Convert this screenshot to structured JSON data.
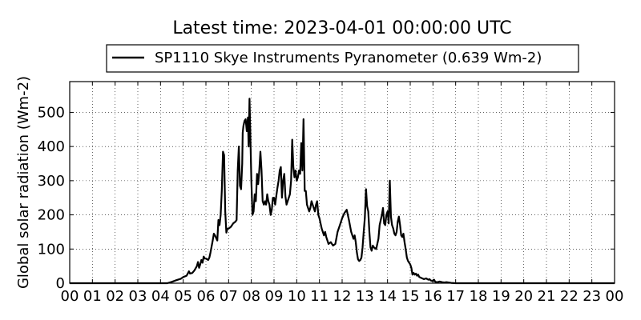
{
  "chart_data": {
    "type": "line",
    "title": "Latest time: 2023-04-01 00:00:00 UTC",
    "ylabel": "Global solar radiation (Wm-2)",
    "xlabel": "",
    "xlim": [
      0,
      24
    ],
    "ylim": [
      0,
      590
    ],
    "x_ticks": [
      "00",
      "01",
      "02",
      "03",
      "04",
      "05",
      "06",
      "07",
      "08",
      "09",
      "10",
      "11",
      "12",
      "13",
      "14",
      "15",
      "16",
      "17",
      "18",
      "19",
      "20",
      "21",
      "22",
      "23",
      "00"
    ],
    "y_ticks": [
      0,
      100,
      200,
      300,
      400,
      500
    ],
    "grid": true,
    "legend": {
      "placement": "top-center"
    },
    "series": [
      {
        "name": "SP1110 Skye Instruments Pyranometer (0.639 Wm-2)",
        "color": "#000000",
        "points": [
          [
            0,
            0
          ],
          [
            4.3,
            0
          ],
          [
            4.5,
            4
          ],
          [
            4.7,
            9
          ],
          [
            4.9,
            13
          ],
          [
            5.0,
            18
          ],
          [
            5.15,
            22
          ],
          [
            5.25,
            35
          ],
          [
            5.3,
            28
          ],
          [
            5.4,
            30
          ],
          [
            5.5,
            38
          ],
          [
            5.6,
            50
          ],
          [
            5.65,
            62
          ],
          [
            5.7,
            45
          ],
          [
            5.75,
            55
          ],
          [
            5.8,
            68
          ],
          [
            5.85,
            60
          ],
          [
            5.9,
            78
          ],
          [
            5.95,
            72
          ],
          [
            6.0,
            72
          ],
          [
            6.1,
            68
          ],
          [
            6.15,
            75
          ],
          [
            6.2,
            90
          ],
          [
            6.3,
            125
          ],
          [
            6.35,
            145
          ],
          [
            6.4,
            140
          ],
          [
            6.45,
            132
          ],
          [
            6.5,
            125
          ],
          [
            6.55,
            185
          ],
          [
            6.6,
            170
          ],
          [
            6.65,
            200
          ],
          [
            6.7,
            270
          ],
          [
            6.75,
            385
          ],
          [
            6.8,
            375
          ],
          [
            6.85,
            210
          ],
          [
            6.9,
            148
          ],
          [
            6.95,
            160
          ],
          [
            7.0,
            160
          ],
          [
            7.1,
            165
          ],
          [
            7.2,
            175
          ],
          [
            7.3,
            180
          ],
          [
            7.35,
            185
          ],
          [
            7.4,
            330
          ],
          [
            7.45,
            400
          ],
          [
            7.5,
            285
          ],
          [
            7.55,
            275
          ],
          [
            7.6,
            350
          ],
          [
            7.62,
            440
          ],
          [
            7.65,
            460
          ],
          [
            7.7,
            475
          ],
          [
            7.75,
            480
          ],
          [
            7.8,
            445
          ],
          [
            7.85,
            485
          ],
          [
            7.88,
            400
          ],
          [
            7.92,
            540
          ],
          [
            7.95,
            450
          ],
          [
            8.0,
            300
          ],
          [
            8.05,
            200
          ],
          [
            8.1,
            210
          ],
          [
            8.15,
            260
          ],
          [
            8.2,
            240
          ],
          [
            8.25,
            320
          ],
          [
            8.3,
            290
          ],
          [
            8.35,
            330
          ],
          [
            8.4,
            385
          ],
          [
            8.45,
            330
          ],
          [
            8.5,
            240
          ],
          [
            8.55,
            230
          ],
          [
            8.6,
            240
          ],
          [
            8.65,
            230
          ],
          [
            8.7,
            260
          ],
          [
            8.75,
            240
          ],
          [
            8.8,
            230
          ],
          [
            8.85,
            200
          ],
          [
            8.9,
            215
          ],
          [
            8.95,
            250
          ],
          [
            9.0,
            250
          ],
          [
            9.05,
            230
          ],
          [
            9.1,
            255
          ],
          [
            9.15,
            280
          ],
          [
            9.2,
            300
          ],
          [
            9.25,
            330
          ],
          [
            9.3,
            340
          ],
          [
            9.35,
            250
          ],
          [
            9.4,
            300
          ],
          [
            9.45,
            320
          ],
          [
            9.5,
            255
          ],
          [
            9.55,
            230
          ],
          [
            9.6,
            240
          ],
          [
            9.7,
            260
          ],
          [
            9.75,
            300
          ],
          [
            9.8,
            420
          ],
          [
            9.85,
            340
          ],
          [
            9.9,
            310
          ],
          [
            9.95,
            330
          ],
          [
            10.0,
            300
          ],
          [
            10.05,
            310
          ],
          [
            10.1,
            330
          ],
          [
            10.15,
            320
          ],
          [
            10.2,
            410
          ],
          [
            10.25,
            330
          ],
          [
            10.3,
            480
          ],
          [
            10.35,
            270
          ],
          [
            10.4,
            270
          ],
          [
            10.45,
            230
          ],
          [
            10.5,
            220
          ],
          [
            10.55,
            210
          ],
          [
            10.6,
            220
          ],
          [
            10.65,
            240
          ],
          [
            10.7,
            230
          ],
          [
            10.75,
            220
          ],
          [
            10.8,
            210
          ],
          [
            10.85,
            230
          ],
          [
            10.9,
            240
          ],
          [
            10.95,
            200
          ],
          [
            11.0,
            190
          ],
          [
            11.05,
            175
          ],
          [
            11.1,
            160
          ],
          [
            11.15,
            150
          ],
          [
            11.2,
            140
          ],
          [
            11.25,
            150
          ],
          [
            11.3,
            135
          ],
          [
            11.35,
            125
          ],
          [
            11.4,
            115
          ],
          [
            11.5,
            120
          ],
          [
            11.6,
            110
          ],
          [
            11.7,
            115
          ],
          [
            11.8,
            150
          ],
          [
            11.9,
            170
          ],
          [
            12.0,
            190
          ],
          [
            12.1,
            205
          ],
          [
            12.2,
            215
          ],
          [
            12.3,
            185
          ],
          [
            12.4,
            150
          ],
          [
            12.5,
            130
          ],
          [
            12.55,
            140
          ],
          [
            12.6,
            120
          ],
          [
            12.65,
            90
          ],
          [
            12.7,
            70
          ],
          [
            12.75,
            65
          ],
          [
            12.8,
            68
          ],
          [
            12.85,
            75
          ],
          [
            12.9,
            105
          ],
          [
            12.95,
            150
          ],
          [
            13.0,
            190
          ],
          [
            13.05,
            275
          ],
          [
            13.1,
            225
          ],
          [
            13.15,
            210
          ],
          [
            13.2,
            150
          ],
          [
            13.25,
            105
          ],
          [
            13.3,
            95
          ],
          [
            13.35,
            110
          ],
          [
            13.4,
            105
          ],
          [
            13.5,
            100
          ],
          [
            13.55,
            115
          ],
          [
            13.6,
            130
          ],
          [
            13.65,
            170
          ],
          [
            13.7,
            185
          ],
          [
            13.75,
            200
          ],
          [
            13.8,
            220
          ],
          [
            13.85,
            175
          ],
          [
            13.9,
            170
          ],
          [
            13.95,
            200
          ],
          [
            14.0,
            210
          ],
          [
            14.05,
            175
          ],
          [
            14.1,
            300
          ],
          [
            14.15,
            195
          ],
          [
            14.2,
            170
          ],
          [
            14.25,
            160
          ],
          [
            14.3,
            145
          ],
          [
            14.35,
            140
          ],
          [
            14.4,
            150
          ],
          [
            14.45,
            180
          ],
          [
            14.5,
            195
          ],
          [
            14.55,
            170
          ],
          [
            14.6,
            140
          ],
          [
            14.65,
            135
          ],
          [
            14.7,
            145
          ],
          [
            14.75,
            120
          ],
          [
            14.8,
            100
          ],
          [
            14.85,
            75
          ],
          [
            14.9,
            65
          ],
          [
            15.0,
            55
          ],
          [
            15.05,
            45
          ],
          [
            15.1,
            25
          ],
          [
            15.15,
            30
          ],
          [
            15.2,
            25
          ],
          [
            15.25,
            28
          ],
          [
            15.3,
            22
          ],
          [
            15.35,
            25
          ],
          [
            15.4,
            18
          ],
          [
            15.5,
            15
          ],
          [
            15.6,
            12
          ],
          [
            15.7,
            14
          ],
          [
            15.8,
            10
          ],
          [
            15.85,
            12
          ],
          [
            15.9,
            8
          ],
          [
            16.0,
            6
          ],
          [
            16.05,
            10
          ],
          [
            16.1,
            4
          ],
          [
            16.2,
            3
          ],
          [
            16.3,
            5
          ],
          [
            16.4,
            3
          ],
          [
            16.5,
            2
          ],
          [
            16.6,
            3
          ],
          [
            16.8,
            1
          ],
          [
            17.0,
            0
          ],
          [
            24,
            0
          ]
        ]
      }
    ]
  }
}
